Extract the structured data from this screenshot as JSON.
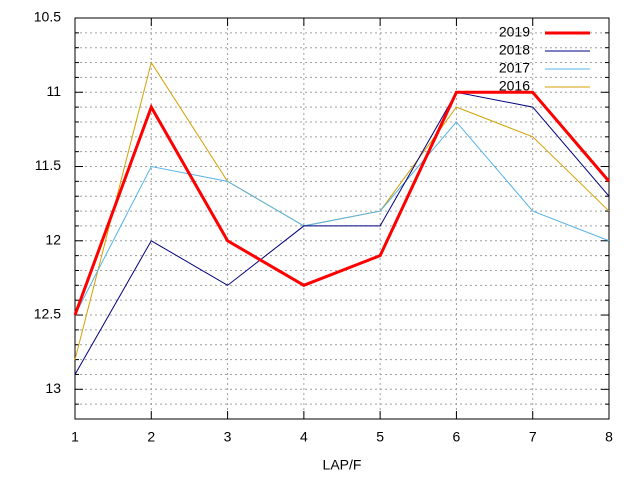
{
  "chart_data": {
    "type": "line",
    "xlabel": "LAP/F",
    "x": [
      1,
      2,
      3,
      4,
      5,
      6,
      7,
      8
    ],
    "series": [
      {
        "name": "2019",
        "color": "#ff0000",
        "width": 3,
        "values": [
          12.5,
          11.1,
          12.0,
          12.3,
          12.1,
          11.0,
          11.0,
          11.6
        ]
      },
      {
        "name": "2018",
        "color": "#000080",
        "width": 1,
        "values": [
          12.9,
          12.0,
          12.3,
          11.9,
          11.9,
          11.0,
          11.1,
          11.7
        ]
      },
      {
        "name": "2017",
        "color": "#56b4e9",
        "width": 1,
        "values": [
          12.5,
          11.5,
          11.6,
          11.9,
          11.8,
          11.2,
          11.8,
          12.0
        ]
      },
      {
        "name": "2016",
        "color": "#d4a000",
        "width": 1,
        "values": [
          12.8,
          10.8,
          11.6,
          11.9,
          11.8,
          11.1,
          11.3,
          11.8
        ]
      }
    ],
    "xlim": [
      1,
      8
    ],
    "xticks": [
      1,
      2,
      3,
      4,
      5,
      6,
      7,
      8
    ],
    "ylim": [
      13.2,
      10.5
    ],
    "yticks": [
      10.5,
      11,
      11.5,
      12,
      12.5,
      13
    ],
    "yminorticks": [
      10.6,
      10.7,
      10.8,
      10.9,
      11.1,
      11.2,
      11.3,
      11.4,
      11.6,
      11.7,
      11.8,
      11.9,
      12.1,
      12.2,
      12.3,
      12.4,
      12.6,
      12.7,
      12.8,
      12.9,
      13.1
    ],
    "grid": true,
    "legend": "top-right"
  }
}
